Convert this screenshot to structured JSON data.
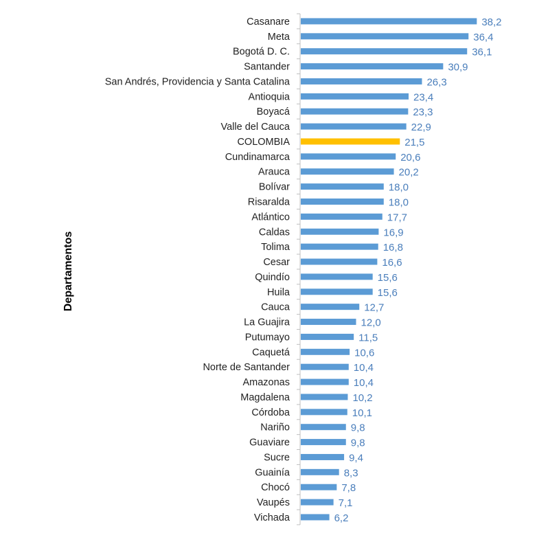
{
  "chart_data": {
    "type": "bar",
    "orientation": "horizontal",
    "title": "",
    "xlabel": "",
    "ylabel": "Departamentos",
    "xlim": [
      0,
      40
    ],
    "grid": false,
    "legend": "none",
    "categories": [
      "Casanare",
      "Meta",
      "Bogotá D. C.",
      "Santander",
      "San Andrés, Providencia y Santa Catalina",
      "Antioquia",
      "Boyacá",
      "Valle del Cauca",
      "COLOMBIA",
      "Cundinamarca",
      "Arauca",
      "Bolívar",
      "Risaralda",
      "Atlántico",
      "Caldas",
      "Tolima",
      "Cesar",
      "Quindío",
      "Huila",
      "Cauca",
      "La Guajira",
      "Putumayo",
      "Caquetá",
      "Norte de Santander",
      "Amazonas",
      "Magdalena",
      "Córdoba",
      "Nariño",
      "Guaviare",
      "Sucre",
      "Guainía",
      "Chocó",
      "Vaupés",
      "Vichada"
    ],
    "values": [
      38.2,
      36.4,
      36.1,
      30.9,
      26.3,
      23.4,
      23.3,
      22.9,
      21.5,
      20.6,
      20.2,
      18.0,
      18.0,
      17.7,
      16.9,
      16.8,
      16.6,
      15.6,
      15.6,
      12.7,
      12.0,
      11.5,
      10.6,
      10.4,
      10.4,
      10.2,
      10.1,
      9.8,
      9.8,
      9.4,
      8.3,
      7.8,
      7.1,
      6.2
    ],
    "value_labels": [
      "38,2",
      "36,4",
      "36,1",
      "30,9",
      "26,3",
      "23,4",
      "23,3",
      "22,9",
      "21,5",
      "20,6",
      "20,2",
      "18,0",
      "18,0",
      "17,7",
      "16,9",
      "16,8",
      "16,6",
      "15,6",
      "15,6",
      "12,7",
      "12,0",
      "11,5",
      "10,6",
      "10,4",
      "10,4",
      "10,2",
      "10,1",
      "9,8",
      "9,8",
      "9,4",
      "8,3",
      "7,8",
      "7,1",
      "6,2"
    ],
    "highlight_category": "COLOMBIA"
  },
  "colors": {
    "bar": "#5b9bd5",
    "highlight": "#ffc000",
    "value_label": "#4a7ebb",
    "axis": "#bfbfbf"
  }
}
